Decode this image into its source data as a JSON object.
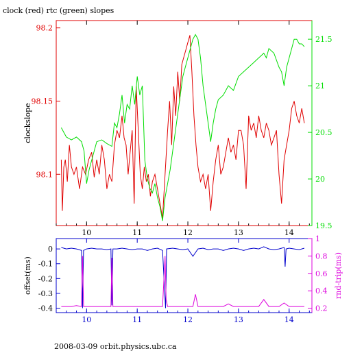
{
  "header": {
    "title": "clock (red) rtc (green) slopes"
  },
  "footer": {
    "label": "2008-03-09  orbit.physics.ubc.ca"
  },
  "colors": {
    "clock": "#e00000",
    "rtc": "#00dd00",
    "offset": "#0000cc",
    "rtt": "#dd00dd",
    "axis": "#000000"
  },
  "chart_data": [
    {
      "type": "line",
      "title": "clock (red) rtc (green) slopes",
      "ylabel": "clockslope",
      "y2label": "",
      "xlim": [
        9.4,
        14.45
      ],
      "ylim": [
        98.065,
        98.205
      ],
      "y2lim": [
        19.5,
        21.7
      ],
      "xticks": [
        10,
        11,
        12,
        13,
        14
      ],
      "yticks": [
        98.1,
        98.15,
        98.2
      ],
      "y2ticks": [
        19.5,
        20,
        20.5,
        21,
        21.5
      ],
      "series": [
        {
          "name": "clock",
          "axis": "left",
          "x": [
            9.5,
            9.52,
            9.55,
            9.58,
            9.62,
            9.66,
            9.7,
            9.75,
            9.8,
            9.86,
            9.92,
            9.98,
            10.04,
            10.1,
            10.15,
            10.2,
            10.25,
            10.3,
            10.35,
            10.4,
            10.45,
            10.5,
            10.55,
            10.6,
            10.65,
            10.7,
            10.74,
            10.78,
            10.82,
            10.86,
            10.9,
            10.94,
            10.98,
            11.02,
            11.06,
            11.1,
            11.14,
            11.18,
            11.22,
            11.26,
            11.3,
            11.35,
            11.4,
            11.45,
            11.5,
            11.55,
            11.6,
            11.64,
            11.68,
            11.72,
            11.76,
            11.8,
            11.84,
            11.88,
            11.92,
            11.96,
            12.0,
            12.04,
            12.08,
            12.12,
            12.16,
            12.2,
            12.25,
            12.3,
            12.35,
            12.4,
            12.45,
            12.5,
            12.55,
            12.6,
            12.65,
            12.7,
            12.75,
            12.8,
            12.85,
            12.9,
            12.95,
            13.0,
            13.05,
            13.1,
            13.15,
            13.2,
            13.25,
            13.3,
            13.35,
            13.4,
            13.45,
            13.5,
            13.55,
            13.6,
            13.65,
            13.7,
            13.75,
            13.8,
            13.85,
            13.9,
            13.95,
            14.0,
            14.05,
            14.1,
            14.15,
            14.2,
            14.25,
            14.3
          ],
          "values": [
            98.11,
            98.075,
            98.105,
            98.11,
            98.095,
            98.12,
            98.105,
            98.1,
            98.105,
            98.09,
            98.105,
            98.1,
            98.11,
            98.115,
            98.098,
            98.11,
            98.1,
            98.12,
            98.11,
            98.09,
            98.1,
            98.095,
            98.12,
            98.13,
            98.125,
            98.14,
            98.125,
            98.12,
            98.1,
            98.115,
            98.13,
            98.08,
            98.16,
            98.13,
            98.1,
            98.09,
            98.105,
            98.095,
            98.1,
            98.085,
            98.095,
            98.1,
            98.09,
            98.08,
            98.07,
            98.1,
            98.13,
            98.15,
            98.12,
            98.16,
            98.14,
            98.17,
            98.15,
            98.175,
            98.18,
            98.185,
            98.19,
            98.195,
            98.17,
            98.14,
            98.12,
            98.105,
            98.095,
            98.1,
            98.09,
            98.1,
            98.075,
            98.095,
            98.11,
            98.12,
            98.1,
            98.105,
            98.115,
            98.125,
            98.115,
            98.12,
            98.11,
            98.13,
            98.13,
            98.12,
            98.09,
            98.14,
            98.13,
            98.135,
            98.125,
            98.14,
            98.13,
            98.125,
            98.135,
            98.13,
            98.12,
            98.125,
            98.13,
            98.1,
            98.08,
            98.11,
            98.12,
            98.13,
            98.145,
            98.15,
            98.14,
            98.135,
            98.145,
            98.135
          ]
        },
        {
          "name": "rtc",
          "axis": "right",
          "x": [
            9.5,
            9.55,
            9.6,
            9.7,
            9.8,
            9.9,
            9.95,
            10.0,
            10.05,
            10.1,
            10.15,
            10.2,
            10.3,
            10.4,
            10.5,
            10.55,
            10.6,
            10.65,
            10.7,
            10.75,
            10.8,
            10.85,
            10.9,
            10.95,
            11.0,
            11.05,
            11.1,
            11.15,
            11.2,
            11.25,
            11.3,
            11.35,
            11.4,
            11.45,
            11.5,
            11.55,
            11.6,
            11.65,
            11.7,
            11.75,
            11.8,
            11.85,
            11.9,
            11.95,
            12.0,
            12.05,
            12.1,
            12.15,
            12.2,
            12.25,
            12.3,
            12.35,
            12.4,
            12.45,
            12.5,
            12.55,
            12.6,
            12.7,
            12.8,
            12.9,
            13.0,
            13.1,
            13.2,
            13.3,
            13.4,
            13.5,
            13.55,
            13.6,
            13.7,
            13.8,
            13.85,
            13.9,
            13.95,
            14.0,
            14.05,
            14.1,
            14.15,
            14.2,
            14.25,
            14.3
          ],
          "values": [
            20.55,
            20.5,
            20.45,
            20.42,
            20.45,
            20.4,
            20.3,
            19.95,
            20.1,
            20.2,
            20.3,
            20.4,
            20.42,
            20.38,
            20.35,
            20.6,
            20.55,
            20.7,
            20.9,
            20.6,
            20.8,
            20.75,
            21.0,
            20.8,
            21.1,
            20.9,
            21.0,
            20.2,
            20.0,
            19.9,
            19.85,
            19.95,
            19.8,
            19.7,
            19.55,
            19.8,
            19.95,
            20.1,
            20.3,
            20.5,
            20.7,
            20.9,
            21.1,
            21.2,
            21.3,
            21.4,
            21.5,
            21.55,
            21.5,
            21.3,
            21.0,
            20.8,
            20.6,
            20.4,
            20.6,
            20.75,
            20.85,
            20.9,
            21.0,
            20.95,
            21.1,
            21.15,
            21.2,
            21.25,
            21.3,
            21.35,
            21.3,
            21.4,
            21.35,
            21.2,
            21.15,
            21.0,
            21.2,
            21.3,
            21.4,
            21.5,
            21.5,
            21.45,
            21.45,
            21.42
          ]
        }
      ]
    },
    {
      "type": "line",
      "ylabel": "offset(ms)",
      "y2label": "rnd-trip(ms)",
      "xlim": [
        9.4,
        14.45
      ],
      "ylim": [
        -0.43,
        0.07
      ],
      "y2lim": [
        0.15,
        1.0
      ],
      "xticks": [
        10,
        11,
        12,
        13,
        14
      ],
      "yticks": [
        0,
        -0.1,
        -0.2,
        -0.3,
        -0.4
      ],
      "y2ticks": [
        0.2,
        0.4,
        0.6,
        0.8,
        1
      ],
      "series": [
        {
          "name": "offset",
          "axis": "left",
          "x": [
            9.5,
            9.6,
            9.7,
            9.8,
            9.9,
            9.92,
            9.94,
            10.0,
            10.1,
            10.2,
            10.3,
            10.4,
            10.48,
            10.5,
            10.52,
            10.6,
            10.7,
            10.8,
            10.9,
            11.0,
            11.1,
            11.2,
            11.3,
            11.4,
            11.5,
            11.56,
            11.57,
            11.58,
            11.7,
            11.8,
            11.9,
            12.0,
            12.1,
            12.2,
            12.3,
            12.4,
            12.5,
            12.6,
            12.7,
            12.8,
            12.9,
            13.0,
            13.1,
            13.2,
            13.3,
            13.4,
            13.5,
            13.6,
            13.7,
            13.8,
            13.9,
            13.92,
            13.94,
            14.0,
            14.1,
            14.2,
            14.3
          ],
          "values": [
            0.01,
            0.0,
            0.005,
            0.0,
            -0.01,
            -0.4,
            -0.01,
            0.0,
            0.005,
            0.0,
            0.0,
            -0.005,
            0.0,
            -0.38,
            0.0,
            0.0,
            0.005,
            0.0,
            -0.005,
            0.0,
            0.0,
            -0.01,
            0.0,
            0.005,
            -0.01,
            -0.4,
            -0.2,
            0.0,
            0.005,
            0.0,
            -0.005,
            0.0,
            -0.05,
            0.0,
            0.005,
            -0.005,
            0.0,
            0.0,
            -0.01,
            0.0,
            0.005,
            0.0,
            -0.01,
            0.0,
            0.005,
            0.0,
            0.015,
            0.0,
            -0.005,
            0.0,
            0.01,
            -0.12,
            0.0,
            0.005,
            0.0,
            -0.005,
            0.005
          ]
        },
        {
          "name": "rnd-trip",
          "axis": "right",
          "x": [
            9.5,
            9.6,
            9.7,
            9.8,
            9.9,
            9.92,
            9.94,
            10.0,
            10.1,
            10.2,
            10.3,
            10.4,
            10.48,
            10.5,
            10.52,
            10.6,
            10.7,
            10.8,
            10.9,
            11.0,
            11.1,
            11.2,
            11.3,
            11.4,
            11.5,
            11.55,
            11.57,
            11.6,
            11.7,
            11.8,
            11.9,
            12.0,
            12.1,
            12.15,
            12.2,
            12.3,
            12.4,
            12.5,
            12.6,
            12.7,
            12.8,
            12.9,
            13.0,
            13.1,
            13.2,
            13.3,
            13.4,
            13.5,
            13.6,
            13.7,
            13.8,
            13.9,
            14.0,
            14.1,
            14.2,
            14.3
          ],
          "values": [
            0.22,
            0.22,
            0.22,
            0.23,
            0.22,
            0.8,
            0.22,
            0.22,
            0.22,
            0.22,
            0.22,
            0.22,
            0.22,
            0.78,
            0.22,
            0.22,
            0.22,
            0.22,
            0.22,
            0.22,
            0.22,
            0.22,
            0.22,
            0.22,
            0.22,
            0.8,
            0.3,
            0.22,
            0.22,
            0.22,
            0.22,
            0.22,
            0.22,
            0.36,
            0.22,
            0.22,
            0.22,
            0.22,
            0.22,
            0.22,
            0.25,
            0.22,
            0.22,
            0.22,
            0.22,
            0.22,
            0.22,
            0.3,
            0.22,
            0.22,
            0.22,
            0.26,
            0.22,
            0.22,
            0.22,
            0.22
          ]
        }
      ]
    }
  ]
}
